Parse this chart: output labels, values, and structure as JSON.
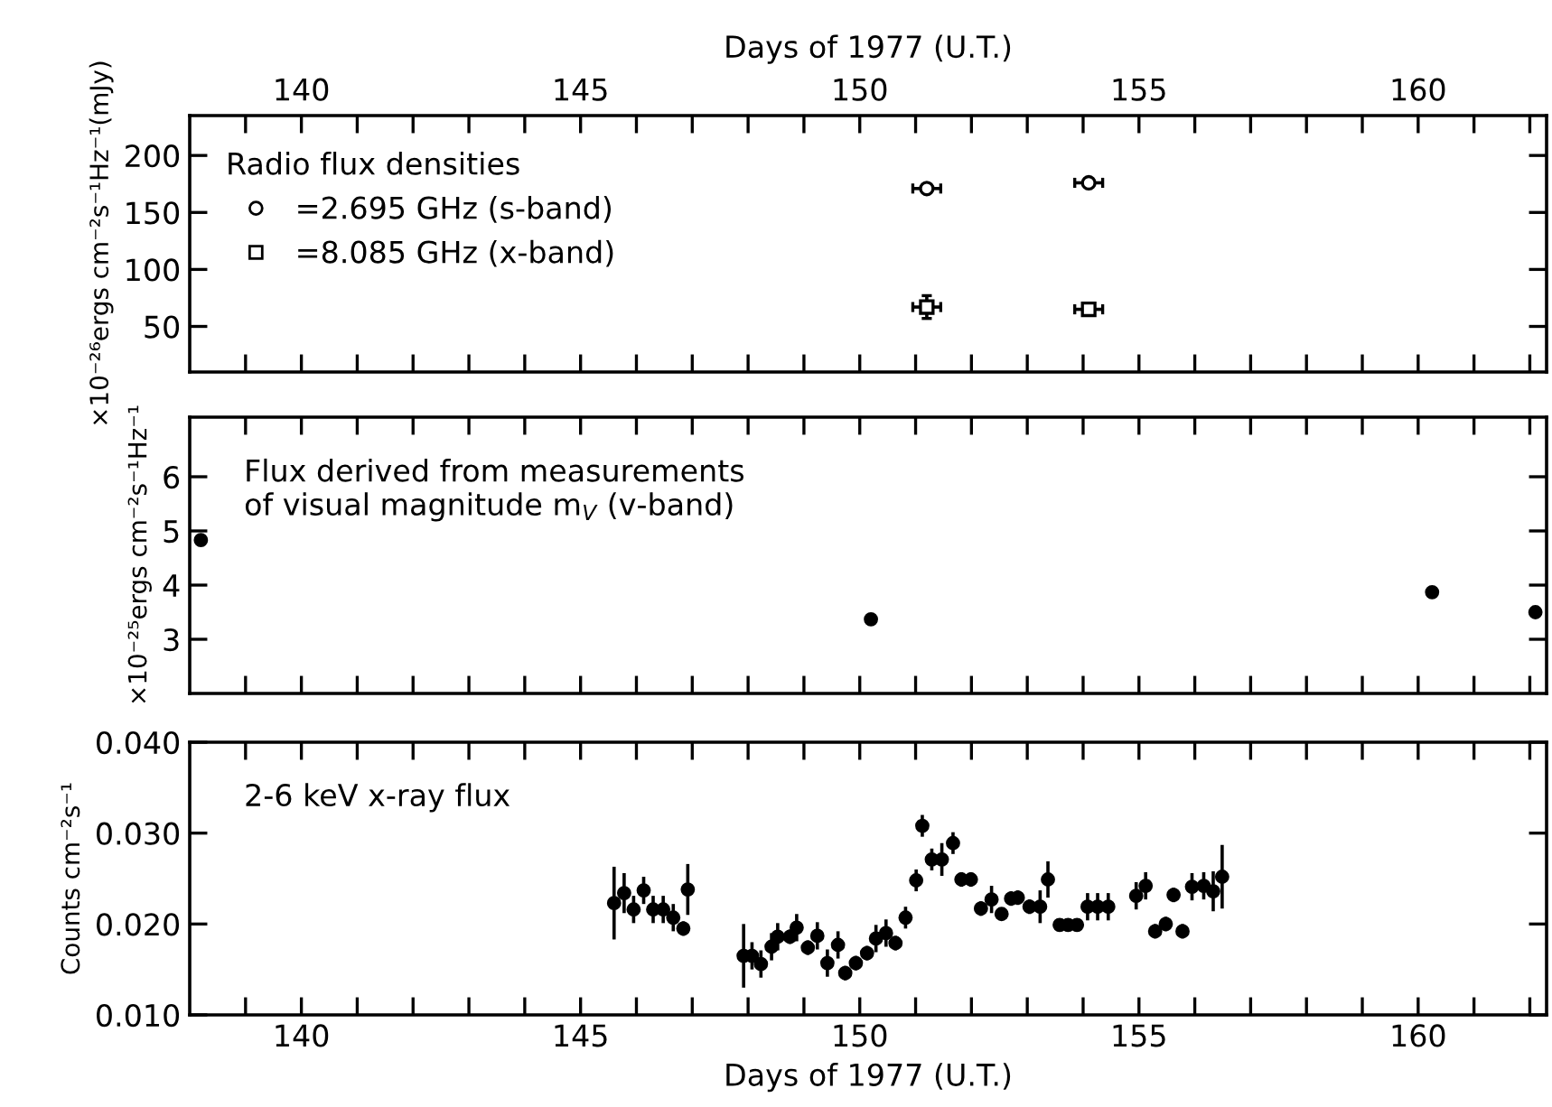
{
  "chart_data": [
    {
      "type": "scatter",
      "legend_title": "Radio flux densities",
      "legend": "top left",
      "ylabel": "×10⁻²⁶ergs cm⁻²s⁻¹Hz⁻¹(mJy)",
      "x2label": "Days of 1977 (U.T.)",
      "tick_labels": "y",
      "xlim": [
        138,
        162.3
      ],
      "ylim": [
        10,
        235
      ],
      "yticks": [
        50,
        100,
        150,
        200
      ],
      "xticks": [
        {
          "value": 139,
          "label": null
        },
        {
          "value": 140,
          "label": null
        },
        {
          "value": 141,
          "label": null
        },
        {
          "value": 142,
          "label": null
        },
        {
          "value": 143,
          "label": null
        },
        {
          "value": 144,
          "label": null
        },
        {
          "value": 145,
          "label": null
        },
        {
          "value": 146,
          "label": null
        },
        {
          "value": 147,
          "label": null
        },
        {
          "value": 148,
          "label": null
        },
        {
          "value": 149,
          "label": null
        },
        {
          "value": 150,
          "label": null
        },
        {
          "value": 151,
          "label": null
        },
        {
          "value": 152,
          "label": null
        },
        {
          "value": 153,
          "label": null
        },
        {
          "value": 154,
          "label": null
        },
        {
          "value": 155,
          "label": null
        },
        {
          "value": 156,
          "label": null
        },
        {
          "value": 157,
          "label": null
        },
        {
          "value": 158,
          "label": null
        },
        {
          "value": 159,
          "label": null
        },
        {
          "value": 160,
          "label": null
        },
        {
          "value": 161,
          "label": null
        },
        {
          "value": 162,
          "label": null
        }
      ],
      "x2lim": [
        138,
        162.3
      ],
      "x2ticks": [
        {
          "value": 139,
          "label": null
        },
        140,
        {
          "value": 141,
          "label": null
        },
        {
          "value": 142,
          "label": null
        },
        {
          "value": 143,
          "label": null
        },
        {
          "value": 144,
          "label": null
        },
        145,
        {
          "value": 146,
          "label": null
        },
        {
          "value": 147,
          "label": null
        },
        {
          "value": 148,
          "label": null
        },
        {
          "value": 149,
          "label": null
        },
        150,
        {
          "value": 151,
          "label": null
        },
        {
          "value": 152,
          "label": null
        },
        {
          "value": 153,
          "label": null
        },
        {
          "value": 154,
          "label": null
        },
        155,
        {
          "value": 156,
          "label": null
        },
        {
          "value": 157,
          "label": null
        },
        {
          "value": 158,
          "label": null
        },
        {
          "value": 159,
          "label": null
        },
        160,
        {
          "value": 161,
          "label": null
        },
        {
          "value": 162,
          "label": null
        }
      ],
      "series": [
        {
          "name": "=2.695 GHz (s-band)",
          "marker": "circle",
          "color": "#000000",
          "x": [
            151.2,
            154.1
          ],
          "values": [
            171,
            176
          ],
          "xerrors": [
            0.25,
            0.25
          ],
          "errors": [
            3,
            3
          ]
        },
        {
          "name": "=8.085 GHz (x-band)",
          "marker": "square",
          "color": "#000000",
          "x": [
            151.2,
            154.1
          ],
          "values": [
            67,
            65
          ],
          "xerrors": [
            0.25,
            0.25
          ],
          "errors": [
            10,
            3
          ]
        }
      ]
    },
    {
      "type": "scatter",
      "ylabel": "×10⁻²⁵ergs cm⁻²s⁻¹Hz⁻¹",
      "tick_labels": "y",
      "annotations": [
        "Flux derived from measurements\nof visual magnitude m$_{V}$ (v-band)"
      ],
      "xlim": [
        138,
        162.3
      ],
      "ylim": [
        2,
        7.1
      ],
      "yticks": [
        3,
        4,
        5,
        6
      ],
      "xticks": [
        {
          "value": 139,
          "label": null
        },
        {
          "value": 140,
          "label": null
        },
        {
          "value": 141,
          "label": null
        },
        {
          "value": 142,
          "label": null
        },
        {
          "value": 143,
          "label": null
        },
        {
          "value": 144,
          "label": null
        },
        {
          "value": 145,
          "label": null
        },
        {
          "value": 146,
          "label": null
        },
        {
          "value": 147,
          "label": null
        },
        {
          "value": 148,
          "label": null
        },
        {
          "value": 149,
          "label": null
        },
        {
          "value": 150,
          "label": null
        },
        {
          "value": 151,
          "label": null
        },
        {
          "value": 152,
          "label": null
        },
        {
          "value": 153,
          "label": null
        },
        {
          "value": 154,
          "label": null
        },
        {
          "value": 155,
          "label": null
        },
        {
          "value": 156,
          "label": null
        },
        {
          "value": 157,
          "label": null
        },
        {
          "value": 158,
          "label": null
        },
        {
          "value": 159,
          "label": null
        },
        {
          "value": 160,
          "label": null
        },
        {
          "value": 161,
          "label": null
        },
        {
          "value": 162,
          "label": null
        }
      ],
      "series": [
        {
          "marker": "circle",
          "color": "#000000",
          "x": [
            138.2,
            150.2,
            160.25,
            162.1
          ],
          "values": [
            4.83,
            3.37,
            3.87,
            3.5
          ]
        }
      ]
    },
    {
      "type": "scatter",
      "ylabel": "Counts cm⁻²s⁻¹",
      "xlabel": "Days of 1977 (U.T.)",
      "annotations": [
        "2-6 keV x-ray flux"
      ],
      "xlim": [
        138,
        162.3
      ],
      "ylim": [
        0.01,
        0.04
      ],
      "yticks": [
        {
          "value": 0.01,
          "label": "0.010"
        },
        {
          "value": 0.02,
          "label": "0.020"
        },
        {
          "value": 0.03,
          "label": "0.030"
        },
        {
          "value": 0.04,
          "label": "0.040"
        }
      ],
      "xticks": [
        {
          "value": 139,
          "label": null
        },
        140,
        {
          "value": 141,
          "label": null
        },
        {
          "value": 142,
          "label": null
        },
        {
          "value": 143,
          "label": null
        },
        {
          "value": 144,
          "label": null
        },
        145,
        {
          "value": 146,
          "label": null
        },
        {
          "value": 147,
          "label": null
        },
        {
          "value": 148,
          "label": null
        },
        {
          "value": 149,
          "label": null
        },
        150,
        {
          "value": 151,
          "label": null
        },
        {
          "value": 152,
          "label": null
        },
        {
          "value": 153,
          "label": null
        },
        {
          "value": 154,
          "label": null
        },
        155,
        {
          "value": 156,
          "label": null
        },
        {
          "value": 157,
          "label": null
        },
        {
          "value": 158,
          "label": null
        },
        {
          "value": 159,
          "label": null
        },
        160,
        {
          "value": 161,
          "label": null
        },
        {
          "value": 162,
          "label": null
        }
      ],
      "series": [
        {
          "marker": "circle",
          "color": "#000000",
          "x": [
            145.6,
            145.78,
            145.95,
            146.13,
            146.3,
            146.48,
            146.66,
            146.84,
            146.92,
            147.92,
            148.07,
            148.23,
            148.42,
            148.53,
            148.75,
            148.87,
            149.07,
            149.24,
            149.42,
            149.61,
            149.74,
            149.93,
            150.13,
            150.29,
            150.47,
            150.64,
            150.82,
            151.01,
            151.12,
            151.29,
            151.47,
            151.67,
            151.82,
            151.99,
            152.17,
            152.36,
            152.54,
            152.71,
            152.83,
            153.04,
            153.23,
            153.37,
            153.58,
            153.73,
            153.89,
            154.08,
            154.26,
            154.45,
            154.95,
            155.12,
            155.29,
            155.48,
            155.62,
            155.78,
            155.95,
            156.16,
            156.33,
            156.49
          ],
          "values": [
            0.0223,
            0.0234,
            0.0216,
            0.0237,
            0.0216,
            0.0216,
            0.0207,
            0.0195,
            0.0238,
            0.0165,
            0.0165,
            0.0156,
            0.0175,
            0.0186,
            0.0186,
            0.0196,
            0.0174,
            0.0187,
            0.0157,
            0.0177,
            0.0146,
            0.0157,
            0.0168,
            0.0184,
            0.019,
            0.0179,
            0.0207,
            0.0248,
            0.0308,
            0.0271,
            0.0271,
            0.0289,
            0.0249,
            0.0249,
            0.0217,
            0.0227,
            0.0211,
            0.0228,
            0.0229,
            0.0219,
            0.0219,
            0.0249,
            0.0199,
            0.0199,
            0.0199,
            0.0219,
            0.0219,
            0.0219,
            0.0231,
            0.0242,
            0.0192,
            0.02,
            0.0232,
            0.0192,
            0.0241,
            0.0242,
            0.0236,
            0.0252
          ],
          "errors": [
            0.004,
            0.0022,
            0.0015,
            0.0015,
            0.0015,
            0.0015,
            0.0015,
            0.0008,
            0.0028,
            0.0035,
            0.0015,
            0.0015,
            0.0015,
            0.0015,
            0.0008,
            0.0015,
            0.0008,
            0.0015,
            0.0015,
            0.0015,
            0.0008,
            0.0008,
            0.0008,
            0.0015,
            0.0015,
            0.0008,
            0.0012,
            0.0012,
            0.0012,
            0.0012,
            0.0018,
            0.0012,
            0.0008,
            0.0008,
            0.0008,
            0.0015,
            0.0005,
            0.0008,
            0.0008,
            0.0008,
            0.0018,
            0.002,
            0.0005,
            0.0005,
            0.0005,
            0.0015,
            0.0015,
            0.0015,
            0.0015,
            0.0015,
            0.0008,
            0.0008,
            0.0008,
            0.0008,
            0.0015,
            0.0015,
            0.0022,
            0.0035
          ]
        }
      ]
    }
  ]
}
